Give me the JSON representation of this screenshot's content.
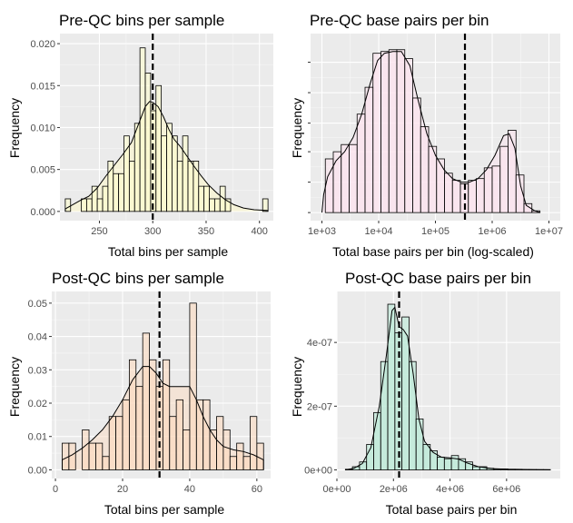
{
  "chart_data": [
    {
      "type": "histogram",
      "title": "Pre-QC bins per sample",
      "xlabel": "Total bins per sample",
      "ylabel": "Frequency",
      "x_scale": "linear",
      "xlim": [
        213,
        413
      ],
      "ylim": [
        -0.0011,
        0.0212
      ],
      "x_ticks": [
        250,
        300,
        350,
        400
      ],
      "x_tick_labels": [
        "250",
        "300",
        "350",
        "400"
      ],
      "y_ticks": [
        0,
        0.005,
        0.01,
        0.015,
        0.02
      ],
      "y_tick_labels": [
        "0.000",
        "0.005",
        "0.010",
        "0.015",
        "0.020"
      ],
      "fill": "#ffffcc",
      "density_fill": "#fdf7c9",
      "vline": 300,
      "bins": [
        {
          "x0": 218,
          "x1": 223,
          "y": 0.0015
        },
        {
          "x0": 223,
          "x1": 228,
          "y": 0.0
        },
        {
          "x0": 228,
          "x1": 233,
          "y": 0.0
        },
        {
          "x0": 233,
          "x1": 238,
          "y": 0.0015
        },
        {
          "x0": 238,
          "x1": 243,
          "y": 0.0015
        },
        {
          "x0": 243,
          "x1": 248,
          "y": 0.003
        },
        {
          "x0": 248,
          "x1": 253,
          "y": 0.0015
        },
        {
          "x0": 253,
          "x1": 258,
          "y": 0.003
        },
        {
          "x0": 258,
          "x1": 263,
          "y": 0.006
        },
        {
          "x0": 263,
          "x1": 268,
          "y": 0.0045
        },
        {
          "x0": 268,
          "x1": 273,
          "y": 0.0045
        },
        {
          "x0": 273,
          "x1": 278,
          "y": 0.009
        },
        {
          "x0": 278,
          "x1": 283,
          "y": 0.006
        },
        {
          "x0": 283,
          "x1": 288,
          "y": 0.0105
        },
        {
          "x0": 288,
          "x1": 293,
          "y": 0.0195
        },
        {
          "x0": 293,
          "x1": 298,
          "y": 0.0165
        },
        {
          "x0": 298,
          "x1": 303,
          "y": 0.012
        },
        {
          "x0": 303,
          "x1": 308,
          "y": 0.015
        },
        {
          "x0": 308,
          "x1": 313,
          "y": 0.009
        },
        {
          "x0": 313,
          "x1": 318,
          "y": 0.0105
        },
        {
          "x0": 318,
          "x1": 323,
          "y": 0.009
        },
        {
          "x0": 323,
          "x1": 328,
          "y": 0.006
        },
        {
          "x0": 328,
          "x1": 333,
          "y": 0.009
        },
        {
          "x0": 333,
          "x1": 338,
          "y": 0.006
        },
        {
          "x0": 338,
          "x1": 343,
          "y": 0.006
        },
        {
          "x0": 343,
          "x1": 348,
          "y": 0.003
        },
        {
          "x0": 348,
          "x1": 353,
          "y": 0.003
        },
        {
          "x0": 353,
          "x1": 358,
          "y": 0.0015
        },
        {
          "x0": 358,
          "x1": 363,
          "y": 0.0015
        },
        {
          "x0": 363,
          "x1": 368,
          "y": 0.003
        },
        {
          "x0": 368,
          "x1": 373,
          "y": 0.0015
        },
        {
          "x0": 373,
          "x1": 378,
          "y": 0.0
        },
        {
          "x0": 378,
          "x1": 383,
          "y": 0.0
        },
        {
          "x0": 383,
          "x1": 388,
          "y": 0.0
        },
        {
          "x0": 388,
          "x1": 393,
          "y": 0.0
        },
        {
          "x0": 393,
          "x1": 398,
          "y": 0.0
        },
        {
          "x0": 398,
          "x1": 403,
          "y": 0.0
        },
        {
          "x0": 403,
          "x1": 408,
          "y": 0.0015
        }
      ],
      "density": [
        [
          218,
          0.0003
        ],
        [
          225,
          0.0008
        ],
        [
          232,
          0.0013
        ],
        [
          240,
          0.0018
        ],
        [
          248,
          0.0028
        ],
        [
          256,
          0.0042
        ],
        [
          264,
          0.0055
        ],
        [
          272,
          0.0068
        ],
        [
          280,
          0.0082
        ],
        [
          287,
          0.0105
        ],
        [
          293,
          0.0125
        ],
        [
          297,
          0.0131
        ],
        [
          300,
          0.013
        ],
        [
          305,
          0.0125
        ],
        [
          310,
          0.0113
        ],
        [
          315,
          0.0098
        ],
        [
          320,
          0.0086
        ],
        [
          326,
          0.0077
        ],
        [
          332,
          0.0066
        ],
        [
          338,
          0.0055
        ],
        [
          345,
          0.0043
        ],
        [
          352,
          0.0032
        ],
        [
          360,
          0.0022
        ],
        [
          368,
          0.0014
        ],
        [
          376,
          0.0008
        ],
        [
          385,
          0.0004
        ],
        [
          395,
          0.0002
        ],
        [
          408,
          0.0001
        ]
      ]
    },
    {
      "type": "histogram",
      "title": "Pre-QC base pairs per bin",
      "xlabel": "Total base pairs per bin (log-scaled)",
      "ylabel": "Frequency",
      "x_scale": "log10",
      "xlim": [
        2.8,
        7.2
      ],
      "ylim": [
        -0.045,
        1.0
      ],
      "x_ticks": [
        3,
        4,
        5,
        6,
        7
      ],
      "x_tick_labels": [
        "1e+03",
        "1e+04",
        "1e+05",
        "1e+06",
        "1e+07"
      ],
      "y_ticks": [
        0,
        0.17,
        0.34,
        0.5,
        0.67,
        0.84
      ],
      "y_tick_labels": [
        "",
        "",
        "",
        "",
        "",
        ""
      ],
      "fill": "#fde3ee",
      "density_fill": "#f9e4ee",
      "vline": 5.52,
      "bins": [
        {
          "x0": 2.92,
          "x1": 3.06,
          "y": 0.0
        },
        {
          "x0": 3.06,
          "x1": 3.2,
          "y": 0.3
        },
        {
          "x0": 3.2,
          "x1": 3.34,
          "y": 0.34
        },
        {
          "x0": 3.34,
          "x1": 3.48,
          "y": 0.38
        },
        {
          "x0": 3.48,
          "x1": 3.62,
          "y": 0.38
        },
        {
          "x0": 3.62,
          "x1": 3.76,
          "y": 0.55
        },
        {
          "x0": 3.76,
          "x1": 3.9,
          "y": 0.7
        },
        {
          "x0": 3.9,
          "x1": 4.04,
          "y": 0.89
        },
        {
          "x0": 4.04,
          "x1": 4.18,
          "y": 0.9
        },
        {
          "x0": 4.18,
          "x1": 4.32,
          "y": 0.91
        },
        {
          "x0": 4.32,
          "x1": 4.46,
          "y": 0.91
        },
        {
          "x0": 4.46,
          "x1": 4.6,
          "y": 0.86
        },
        {
          "x0": 4.6,
          "x1": 4.74,
          "y": 0.64
        },
        {
          "x0": 4.74,
          "x1": 4.88,
          "y": 0.48
        },
        {
          "x0": 4.88,
          "x1": 5.02,
          "y": 0.37
        },
        {
          "x0": 5.02,
          "x1": 5.16,
          "y": 0.3
        },
        {
          "x0": 5.16,
          "x1": 5.3,
          "y": 0.22
        },
        {
          "x0": 5.3,
          "x1": 5.44,
          "y": 0.18
        },
        {
          "x0": 5.44,
          "x1": 5.58,
          "y": 0.16
        },
        {
          "x0": 5.58,
          "x1": 5.72,
          "y": 0.18
        },
        {
          "x0": 5.72,
          "x1": 5.86,
          "y": 0.19
        },
        {
          "x0": 5.86,
          "x1": 6.0,
          "y": 0.25
        },
        {
          "x0": 6.0,
          "x1": 6.14,
          "y": 0.26
        },
        {
          "x0": 6.14,
          "x1": 6.28,
          "y": 0.37
        },
        {
          "x0": 6.28,
          "x1": 6.42,
          "y": 0.46
        },
        {
          "x0": 6.42,
          "x1": 6.56,
          "y": 0.21
        },
        {
          "x0": 6.56,
          "x1": 6.7,
          "y": 0.05
        },
        {
          "x0": 6.7,
          "x1": 6.84,
          "y": 0.01
        }
      ],
      "density": [
        [
          3.0,
          0.0
        ],
        [
          3.03,
          0.1
        ],
        [
          3.1,
          0.2
        ],
        [
          3.25,
          0.29
        ],
        [
          3.4,
          0.34
        ],
        [
          3.55,
          0.42
        ],
        [
          3.7,
          0.55
        ],
        [
          3.85,
          0.72
        ],
        [
          3.98,
          0.85
        ],
        [
          4.1,
          0.89
        ],
        [
          4.25,
          0.9
        ],
        [
          4.4,
          0.9
        ],
        [
          4.55,
          0.82
        ],
        [
          4.7,
          0.62
        ],
        [
          4.85,
          0.44
        ],
        [
          5.0,
          0.32
        ],
        [
          5.15,
          0.24
        ],
        [
          5.3,
          0.19
        ],
        [
          5.45,
          0.17
        ],
        [
          5.6,
          0.17
        ],
        [
          5.75,
          0.19
        ],
        [
          5.9,
          0.24
        ],
        [
          6.05,
          0.32
        ],
        [
          6.2,
          0.43
        ],
        [
          6.3,
          0.44
        ],
        [
          6.4,
          0.36
        ],
        [
          6.5,
          0.15
        ],
        [
          6.6,
          0.04
        ],
        [
          6.75,
          0.01
        ],
        [
          6.85,
          0.0
        ]
      ]
    },
    {
      "type": "histogram",
      "title": "Post-QC bins per sample",
      "xlabel": "Total bins per sample",
      "ylabel": "Frequency",
      "x_scale": "linear",
      "xlim": [
        -1.1,
        64.1
      ],
      "ylim": [
        -0.0026,
        0.0535
      ],
      "x_ticks": [
        0,
        20,
        40,
        60
      ],
      "x_tick_labels": [
        "0",
        "20",
        "40",
        "60"
      ],
      "y_ticks": [
        0,
        0.01,
        0.02,
        0.03,
        0.04,
        0.05
      ],
      "y_tick_labels": [
        "0.00",
        "0.01",
        "0.02",
        "0.03",
        "0.04",
        "0.05"
      ],
      "fill": "#fdd9bc",
      "density_fill": "#f9dcc4",
      "vline": 31,
      "bins": [
        {
          "x0": 2,
          "x1": 4,
          "y": 0.008
        },
        {
          "x0": 4,
          "x1": 6,
          "y": 0.008
        },
        {
          "x0": 6,
          "x1": 8,
          "y": 0.0
        },
        {
          "x0": 8,
          "x1": 10,
          "y": 0.012
        },
        {
          "x0": 10,
          "x1": 12,
          "y": 0.008
        },
        {
          "x0": 12,
          "x1": 14,
          "y": 0.008
        },
        {
          "x0": 14,
          "x1": 16,
          "y": 0.004
        },
        {
          "x0": 16,
          "x1": 18,
          "y": 0.016
        },
        {
          "x0": 18,
          "x1": 20,
          "y": 0.016
        },
        {
          "x0": 20,
          "x1": 22,
          "y": 0.021
        },
        {
          "x0": 22,
          "x1": 24,
          "y": 0.033
        },
        {
          "x0": 24,
          "x1": 26,
          "y": 0.025
        },
        {
          "x0": 26,
          "x1": 28,
          "y": 0.041
        },
        {
          "x0": 28,
          "x1": 30,
          "y": 0.033
        },
        {
          "x0": 30,
          "x1": 32,
          "y": 0.025
        },
        {
          "x0": 32,
          "x1": 34,
          "y": 0.033
        },
        {
          "x0": 34,
          "x1": 36,
          "y": 0.016
        },
        {
          "x0": 36,
          "x1": 38,
          "y": 0.021
        },
        {
          "x0": 38,
          "x1": 40,
          "y": 0.012
        },
        {
          "x0": 40,
          "x1": 42,
          "y": 0.05
        },
        {
          "x0": 42,
          "x1": 44,
          "y": 0.021
        },
        {
          "x0": 44,
          "x1": 46,
          "y": 0.021
        },
        {
          "x0": 46,
          "x1": 48,
          "y": 0.012
        },
        {
          "x0": 48,
          "x1": 50,
          "y": 0.016
        },
        {
          "x0": 50,
          "x1": 52,
          "y": 0.012
        },
        {
          "x0": 52,
          "x1": 54,
          "y": 0.004
        },
        {
          "x0": 54,
          "x1": 56,
          "y": 0.008
        },
        {
          "x0": 56,
          "x1": 58,
          "y": 0.004
        },
        {
          "x0": 58,
          "x1": 60,
          "y": 0.016
        },
        {
          "x0": 60,
          "x1": 62,
          "y": 0.008
        }
      ],
      "density": [
        [
          2,
          0.003
        ],
        [
          5,
          0.0045
        ],
        [
          8,
          0.0065
        ],
        [
          11,
          0.009
        ],
        [
          14,
          0.012
        ],
        [
          17,
          0.016
        ],
        [
          20,
          0.021
        ],
        [
          23,
          0.027
        ],
        [
          26,
          0.031
        ],
        [
          28,
          0.031
        ],
        [
          30,
          0.029
        ],
        [
          32,
          0.026
        ],
        [
          34,
          0.025
        ],
        [
          36,
          0.025
        ],
        [
          38,
          0.025
        ],
        [
          40,
          0.025
        ],
        [
          42,
          0.021
        ],
        [
          44,
          0.016
        ],
        [
          46,
          0.012
        ],
        [
          48,
          0.009
        ],
        [
          50,
          0.007
        ],
        [
          53,
          0.006
        ],
        [
          56,
          0.0055
        ],
        [
          59,
          0.0045
        ],
        [
          62,
          0.003
        ]
      ]
    },
    {
      "type": "histogram",
      "title": "Post-QC base pairs per bin",
      "xlabel": "Total base pairs per bin",
      "ylabel": "Frequency",
      "x_scale": "linear",
      "xlim": [
        -0.0,
        7900000.0
      ],
      "ylim": [
        -2.7e-08,
        5.6e-07
      ],
      "x_ticks": [
        0,
        2000000,
        4000000,
        6000000
      ],
      "x_tick_labels": [
        "0e+00",
        "2e+06",
        "4e+06",
        "6e+06"
      ],
      "y_ticks": [
        0,
        2e-07,
        4e-07
      ],
      "y_tick_labels": [
        "0e+00",
        "2e-07",
        "4e-07"
      ],
      "fill": "#b7ead6",
      "density_fill": "#c6ecdc",
      "vline": 2200000,
      "bins": [
        {
          "x0": 300000,
          "x1": 550000,
          "y": 2e-09
        },
        {
          "x0": 550000,
          "x1": 800000,
          "y": 1e-08
        },
        {
          "x0": 800000,
          "x1": 1050000,
          "y": 2.5e-08
        },
        {
          "x0": 1050000,
          "x1": 1300000,
          "y": 8e-08
        },
        {
          "x0": 1300000,
          "x1": 1550000,
          "y": 1.8e-07
        },
        {
          "x0": 1550000,
          "x1": 1800000,
          "y": 3.4e-07
        },
        {
          "x0": 1800000,
          "x1": 2050000,
          "y": 5.2e-07
        },
        {
          "x0": 2050000,
          "x1": 2300000,
          "y": 4.3e-07
        },
        {
          "x0": 2300000,
          "x1": 2550000,
          "y": 4.8e-07
        },
        {
          "x0": 2550000,
          "x1": 2800000,
          "y": 3.4e-07
        },
        {
          "x0": 2800000,
          "x1": 3050000,
          "y": 1.6e-07
        },
        {
          "x0": 3050000,
          "x1": 3300000,
          "y": 8e-08
        },
        {
          "x0": 3300000,
          "x1": 3550000,
          "y": 6e-08
        },
        {
          "x0": 3550000,
          "x1": 3800000,
          "y": 4e-08
        },
        {
          "x0": 3800000,
          "x1": 4050000,
          "y": 3.5e-08
        },
        {
          "x0": 4050000,
          "x1": 4300000,
          "y": 4.5e-08
        },
        {
          "x0": 4300000,
          "x1": 4550000,
          "y": 3.5e-08
        },
        {
          "x0": 4550000,
          "x1": 4800000,
          "y": 2.5e-08
        },
        {
          "x0": 4800000,
          "x1": 5050000,
          "y": 1e-08
        },
        {
          "x0": 5050000,
          "x1": 5300000,
          "y": 1e-08
        },
        {
          "x0": 5300000,
          "x1": 5550000,
          "y": 5e-09
        },
        {
          "x0": 5550000,
          "x1": 5800000,
          "y": 3e-09
        },
        {
          "x0": 5800000,
          "x1": 6050000,
          "y": 3e-09
        },
        {
          "x0": 6050000,
          "x1": 6300000,
          "y": 2e-09
        },
        {
          "x0": 6300000,
          "x1": 6550000,
          "y": 2e-09
        },
        {
          "x0": 6550000,
          "x1": 6800000,
          "y": 1e-09
        },
        {
          "x0": 6800000,
          "x1": 7050000,
          "y": 1e-09
        },
        {
          "x0": 7050000,
          "x1": 7300000,
          "y": 1e-09
        },
        {
          "x0": 7300000,
          "x1": 7550000,
          "y": 1e-09
        }
      ],
      "density": [
        [
          300000,
          0.0
        ],
        [
          600000,
          5e-09
        ],
        [
          900000,
          2e-08
        ],
        [
          1200000,
          7e-08
        ],
        [
          1500000,
          2e-07
        ],
        [
          1750000,
          3.6e-07
        ],
        [
          1950000,
          5e-07
        ],
        [
          2050000,
          5.1e-07
        ],
        [
          2200000,
          4.5e-07
        ],
        [
          2350000,
          4.4e-07
        ],
        [
          2500000,
          4.2e-07
        ],
        [
          2700000,
          3e-07
        ],
        [
          2900000,
          1.6e-07
        ],
        [
          3100000,
          9e-08
        ],
        [
          3400000,
          5.5e-08
        ],
        [
          3700000,
          4e-08
        ],
        [
          4000000,
          3.8e-08
        ],
        [
          4300000,
          3.4e-08
        ],
        [
          4600000,
          2.2e-08
        ],
        [
          5000000,
          1e-08
        ],
        [
          5500000,
          4e-09
        ],
        [
          6000000,
          2e-09
        ],
        [
          7000000,
          1e-09
        ],
        [
          7550000,
          0.0
        ]
      ]
    }
  ]
}
